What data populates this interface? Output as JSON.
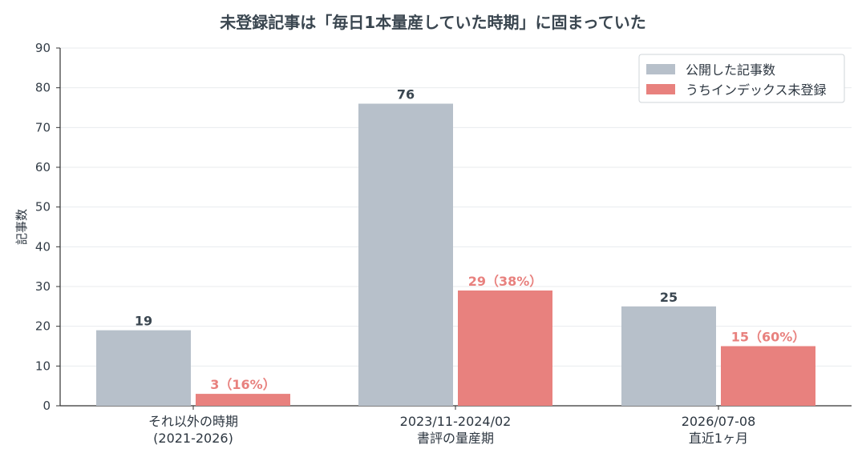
{
  "chart_data": {
    "type": "bar",
    "title": "未登録記事は「毎日1本量産していた時期」に固まっていた",
    "ylabel": "記事数",
    "ylim": [
      0,
      90
    ],
    "yticks": [
      0,
      10,
      20,
      30,
      40,
      50,
      60,
      70,
      80,
      90
    ],
    "grid": true,
    "legend_position": "top-right",
    "categories": [
      [
        "それ以外の時期",
        "(2021-2026)"
      ],
      [
        "2023/11-2024/02",
        "書評の量産期"
      ],
      [
        "2026/07-08",
        "直近1ヶ月"
      ]
    ],
    "series": [
      {
        "name": "公開した記事数",
        "color": "#b7c0ca",
        "label_color": "#3a4650",
        "values": [
          19,
          76,
          25
        ],
        "labels": [
          "19",
          "76",
          "25"
        ]
      },
      {
        "name": "うちインデックス未登録",
        "color": "#e8817e",
        "label_color": "#e8817e",
        "values": [
          3,
          29,
          15
        ],
        "labels": [
          "3（16%）",
          "29（38%）",
          "15（60%）"
        ]
      }
    ]
  }
}
